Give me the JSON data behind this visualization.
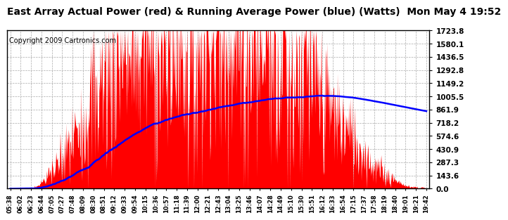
{
  "title": "East Array Actual Power (red) & Running Average Power (blue) (Watts)  Mon May 4 19:52",
  "copyright": "Copyright 2009 Cartronics.com",
  "yticks": [
    0.0,
    143.6,
    287.3,
    430.9,
    574.6,
    718.2,
    861.9,
    1005.5,
    1149.2,
    1292.8,
    1436.5,
    1580.1,
    1723.8
  ],
  "ymax": 1723.8,
  "xtick_labels": [
    "05:38",
    "06:02",
    "06:23",
    "06:44",
    "07:05",
    "07:27",
    "07:48",
    "08:09",
    "08:30",
    "08:51",
    "09:12",
    "09:33",
    "09:54",
    "10:15",
    "10:36",
    "10:57",
    "11:18",
    "11:39",
    "12:00",
    "12:21",
    "12:43",
    "13:04",
    "13:25",
    "13:46",
    "14:07",
    "14:28",
    "14:49",
    "15:10",
    "15:30",
    "15:51",
    "16:12",
    "16:33",
    "16:54",
    "17:15",
    "17:37",
    "17:58",
    "18:19",
    "18:40",
    "19:01",
    "19:21",
    "19:42"
  ],
  "background_color": "#ffffff",
  "grid_color": "#aaaaaa",
  "actual_color": "#ff0000",
  "average_color": "#0000ff",
  "title_fontsize": 10,
  "title_fontsize_small": 8,
  "copyright_fontsize": 7
}
